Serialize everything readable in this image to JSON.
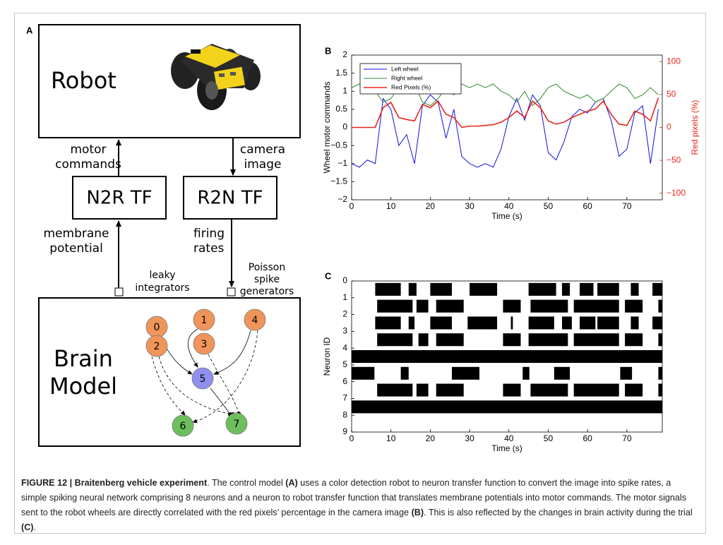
{
  "diagram": {
    "label": "A",
    "robot": "Robot",
    "motor_commands": [
      "motor",
      "commands"
    ],
    "camera_image": [
      "camera",
      "image"
    ],
    "n2r": "N2R TF",
    "r2n": "R2N TF",
    "membrane_potential": [
      "membrane",
      "potential"
    ],
    "firing_rates": [
      "firing",
      "rates"
    ],
    "leaky_integrators": [
      "leaky",
      "integrators"
    ],
    "poisson": [
      "Poisson",
      "spike",
      "generators"
    ],
    "brain": [
      "Brain",
      "Model"
    ],
    "nodes": [
      {
        "label": "0",
        "color": "#f0955a"
      },
      {
        "label": "1",
        "color": "#f0955a"
      },
      {
        "label": "2",
        "color": "#f0955a"
      },
      {
        "label": "3",
        "color": "#f0955a"
      },
      {
        "label": "4",
        "color": "#f0955a"
      },
      {
        "label": "5",
        "color": "#8f8ff0"
      },
      {
        "label": "6",
        "color": "#6dbf5e"
      },
      {
        "label": "7",
        "color": "#6dbf5e"
      }
    ]
  },
  "chart_data": [
    {
      "type": "line",
      "panel_label": "B",
      "xlabel": "Time (s)",
      "ylabel": "Wheel motor commands",
      "y2label": "Red pixels (%)",
      "x": [
        0,
        2,
        4,
        6,
        8,
        10,
        12,
        14,
        16,
        18,
        20,
        22,
        24,
        26,
        28,
        30,
        32,
        34,
        36,
        38,
        40,
        42,
        44,
        46,
        48,
        50,
        52,
        54,
        56,
        58,
        60,
        62,
        64,
        66,
        68,
        70,
        72,
        74,
        76,
        78
      ],
      "series": [
        {
          "name": "Left wheel",
          "color": "#1010e0",
          "values": [
            -1,
            -1.1,
            -0.9,
            -1,
            0.8,
            0.5,
            -0.5,
            -0.2,
            -1,
            0.6,
            0.9,
            0.7,
            -0.3,
            0.5,
            -0.8,
            -1,
            -1.1,
            -1,
            -1.1,
            -0.6,
            0.3,
            0.8,
            0.2,
            0.9,
            0.6,
            -0.7,
            -0.9,
            -0.4,
            0.3,
            0.5,
            0.4,
            0.7,
            0.8,
            0.2,
            -0.8,
            -0.6,
            0.4,
            0.6,
            -1,
            0.5
          ]
        },
        {
          "name": "Right wheel",
          "color": "#2e8b2e",
          "values": [
            1.1,
            1.2,
            1.1,
            1.0,
            0.7,
            0.8,
            1.1,
            1.0,
            1.2,
            0.7,
            0.6,
            0.8,
            1.1,
            0.9,
            1.2,
            1.1,
            1.2,
            1.1,
            1.2,
            1.0,
            0.9,
            0.7,
            1.0,
            0.6,
            0.8,
            1.1,
            1.2,
            1.0,
            0.9,
            0.8,
            0.9,
            0.7,
            0.8,
            1.0,
            1.2,
            1.1,
            0.8,
            0.9,
            1.1,
            0.9
          ]
        },
        {
          "name": "Red Pixels (%)",
          "color": "#e8261c",
          "axis": "y2",
          "values": [
            0,
            0,
            0,
            0,
            30,
            38,
            15,
            12,
            10,
            35,
            30,
            40,
            20,
            15,
            0,
            2,
            2,
            3,
            4,
            8,
            15,
            25,
            15,
            40,
            30,
            10,
            5,
            8,
            15,
            20,
            25,
            28,
            40,
            20,
            5,
            3,
            25,
            20,
            10,
            45
          ]
        }
      ],
      "xlim": [
        0,
        79
      ],
      "xticks": [
        0,
        10,
        20,
        30,
        40,
        50,
        60,
        70
      ],
      "ylim": [
        -2,
        2
      ],
      "yticks": [
        {
          "value": -2,
          "label": "−2"
        },
        {
          "value": -1.5,
          "label": "−1.5"
        },
        {
          "value": -1,
          "label": "−1"
        },
        {
          "value": -0.5,
          "label": "−0.5"
        },
        0,
        0.5,
        1,
        1.5,
        2
      ],
      "y2lim": [
        -110,
        110
      ],
      "y2ticks": [
        {
          "value": -100,
          "label": "−100"
        },
        {
          "value": -50,
          "label": "−50"
        },
        0,
        50,
        100
      ],
      "y2color": "#e8261c",
      "legend": "upper left"
    },
    {
      "type": "raster",
      "panel_label": "C",
      "xlabel": "Time (s)",
      "ylabel": "Neuron ID",
      "color": "#000000",
      "intervals": [
        [
          [
            6,
            12.5
          ],
          [
            14.5,
            16.5
          ],
          [
            20,
            25.5
          ],
          [
            30,
            37
          ],
          [
            45,
            52
          ],
          [
            53.5,
            55.5
          ],
          [
            58,
            61.5
          ],
          [
            62.5,
            68
          ],
          [
            71,
            73
          ],
          [
            76.5,
            79
          ]
        ],
        [
          [
            6.5,
            15.5
          ],
          [
            16.5,
            19.5
          ],
          [
            21.5,
            28.5
          ],
          [
            38.5,
            43
          ],
          [
            45.5,
            55
          ],
          [
            56.5,
            68
          ],
          [
            69.5,
            74
          ],
          [
            78,
            79
          ]
        ],
        [
          [
            6,
            12.5
          ],
          [
            14.5,
            16
          ],
          [
            20,
            25.5
          ],
          [
            29.5,
            37
          ],
          [
            40.5,
            41
          ],
          [
            45,
            51.5
          ],
          [
            53.5,
            56
          ],
          [
            58,
            62
          ],
          [
            62.5,
            68
          ],
          [
            71,
            73
          ],
          [
            76.5,
            79
          ]
        ],
        [
          [
            6.5,
            15.5
          ],
          [
            17,
            19.5
          ],
          [
            21.5,
            28.5
          ],
          [
            38.5,
            43
          ],
          [
            45,
            55
          ],
          [
            56.5,
            68
          ],
          [
            69.5,
            74
          ],
          [
            78,
            79
          ]
        ],
        [
          [
            0,
            79
          ]
        ],
        [
          [
            0,
            5.8
          ],
          [
            12.5,
            14.5
          ],
          [
            25.5,
            32.5
          ],
          [
            43.5,
            45.2
          ],
          [
            51.5,
            55.5
          ],
          [
            68.3,
            71.3
          ],
          [
            78,
            79
          ]
        ],
        [
          [
            6.5,
            15.5
          ],
          [
            16.5,
            19.5
          ],
          [
            21.5,
            28.5
          ],
          [
            38.5,
            43
          ],
          [
            45.5,
            55
          ],
          [
            56.5,
            68
          ],
          [
            69.5,
            74
          ],
          [
            78,
            79
          ]
        ],
        [
          [
            0,
            79
          ]
        ]
      ],
      "xlim": [
        0,
        79
      ],
      "xticks": [
        0,
        10,
        20,
        30,
        40,
        50,
        60,
        70
      ],
      "ylim": [
        0,
        9
      ],
      "yticks": [
        0,
        1,
        2,
        3,
        4,
        5,
        6,
        7,
        8,
        9
      ],
      "y_inverted": true
    }
  ],
  "caption": {
    "parts": [
      "FIGURE 12 | Braitenberg vehicle experiment",
      ". The control model ",
      "(A)",
      " uses a color detection robot to neuron transfer function to convert the image into spike rates, a simple spiking neural network comprising 8 neurons and a neuron to robot transfer function that translates membrane potentials into motor commands. The motor signals sent to the robot wheels are directly correlated with the red pixels’ percentage in the camera image ",
      "(B)",
      ". This is also reflected by the changes in brain activity during the trial ",
      "(C)",
      "."
    ]
  }
}
